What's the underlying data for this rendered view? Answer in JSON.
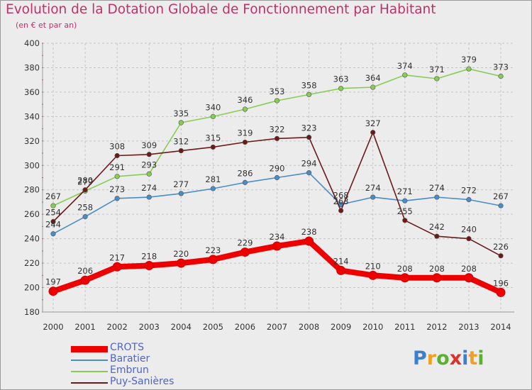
{
  "header": {
    "title": "Evolution de la Dotation Globale de Fonctionnement par Habitant",
    "subtitle": "(en € et par an)"
  },
  "logo": {
    "text": "Proxiti",
    "letters": [
      {
        "ch": "P",
        "color": "#3a7fd0"
      },
      {
        "ch": "r",
        "color": "#f0a020"
      },
      {
        "ch": "o",
        "color": "#5cb030"
      },
      {
        "ch": "x",
        "color": "#e0302a"
      },
      {
        "ch": "i",
        "color": "#3a7fd0"
      },
      {
        "ch": "t",
        "color": "#f0a020"
      },
      {
        "ch": "i",
        "color": "#5cb030"
      }
    ]
  },
  "chart_data": {
    "type": "line",
    "title": "Evolution de la Dotation Globale de Fonctionnement par Habitant",
    "subtitle": "(en € et par an)",
    "xlabel": "",
    "ylabel": "",
    "x": [
      "2000",
      "2001",
      "2002",
      "2003",
      "2004",
      "2005",
      "2006",
      "2007",
      "2008",
      "2009",
      "2010",
      "2011",
      "2012",
      "2013",
      "2014"
    ],
    "ylim": [
      180,
      400
    ],
    "yticks": [
      180,
      200,
      220,
      240,
      260,
      280,
      300,
      320,
      340,
      360,
      380,
      400
    ],
    "grid": true,
    "legend_position": "bottom-left",
    "series": [
      {
        "name": "CROTS",
        "color": "#ee0000",
        "thick": true,
        "values": [
          197,
          206,
          217,
          218,
          220,
          223,
          229,
          234,
          238,
          214,
          210,
          208,
          208,
          208,
          196
        ]
      },
      {
        "name": "Baratier",
        "color": "#4a8cc8",
        "thick": false,
        "values": [
          244,
          258,
          273,
          274,
          277,
          281,
          286,
          290,
          294,
          268,
          274,
          271,
          274,
          272,
          267
        ]
      },
      {
        "name": "Embrun",
        "color": "#88cc55",
        "thick": false,
        "values": [
          267,
          279,
          291,
          293,
          335,
          340,
          346,
          353,
          358,
          363,
          364,
          374,
          371,
          379,
          373
        ]
      },
      {
        "name": "Puy-Sanières",
        "color": "#6b1a1a",
        "thick": false,
        "values": [
          254,
          280,
          308,
          309,
          312,
          315,
          319,
          322,
          323,
          263,
          327,
          255,
          242,
          240,
          226
        ]
      }
    ]
  }
}
